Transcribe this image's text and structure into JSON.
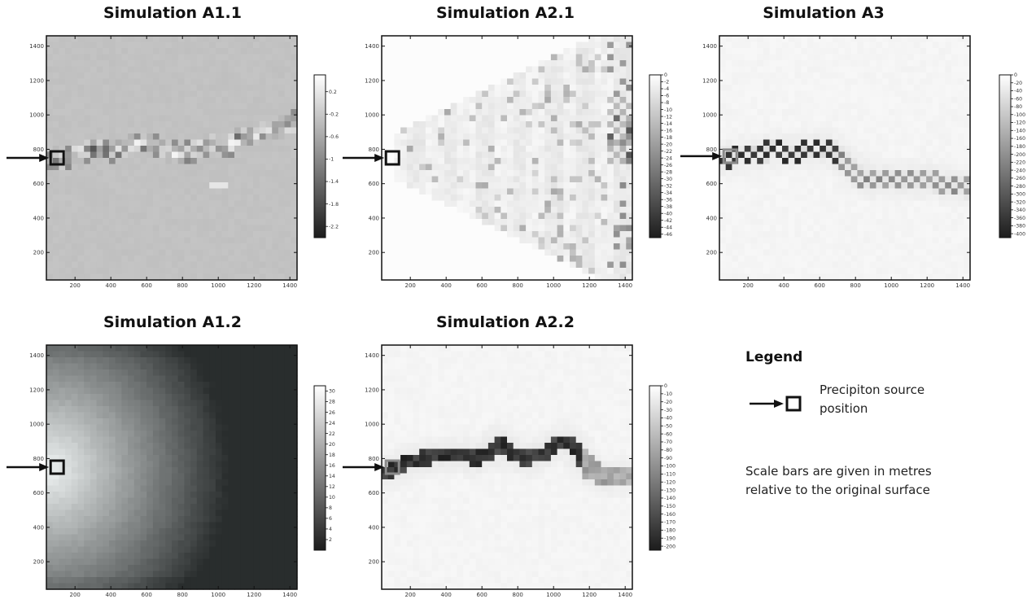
{
  "chart_data": [
    {
      "type": "heatmap",
      "title": "Simulation A1.1",
      "xticks": [
        200,
        400,
        600,
        800,
        1000,
        1200,
        1400
      ],
      "yticks": [
        200,
        400,
        600,
        800,
        1000,
        1200,
        1400
      ],
      "xlim": [
        40,
        1440
      ],
      "ylim": [
        40,
        1460
      ],
      "colorbar": {
        "ticks": [
          "0.2",
          "-0.2",
          "-0.6",
          "-1",
          "-1.4",
          "-1.8",
          "-2.2"
        ],
        "range": [
          0.5,
          -2.4
        ]
      },
      "source": {
        "x": 100,
        "y": 750
      },
      "pattern": "channel",
      "path": [
        [
          40,
          760
        ],
        [
          140,
          740
        ],
        [
          250,
          790
        ],
        [
          330,
          810
        ],
        [
          420,
          790
        ],
        [
          520,
          840
        ],
        [
          620,
          830
        ],
        [
          700,
          790
        ],
        [
          800,
          770
        ],
        [
          880,
          800
        ],
        [
          960,
          830
        ],
        [
          1050,
          820
        ],
        [
          1120,
          870
        ],
        [
          1200,
          890
        ],
        [
          1300,
          910
        ],
        [
          1440,
          960
        ]
      ],
      "base": 0.76
    },
    {
      "type": "heatmap",
      "title": "Simulation A2.1",
      "xticks": [
        200,
        400,
        600,
        800,
        1000,
        1200,
        1400
      ],
      "yticks": [
        200,
        400,
        600,
        800,
        1000,
        1200,
        1400
      ],
      "xlim": [
        40,
        1440
      ],
      "ylim": [
        40,
        1460
      ],
      "colorbar": {
        "ticks": [
          "0",
          "-2",
          "-4",
          "-6",
          "-8",
          "-10",
          "-12",
          "-14",
          "-16",
          "-18",
          "-20",
          "-22",
          "-24",
          "-26",
          "-28",
          "-30",
          "-32",
          "-34",
          "-36",
          "-38",
          "-40",
          "-42",
          "-44",
          "-46"
        ],
        "range": [
          0,
          -47
        ]
      },
      "source": {
        "x": 100,
        "y": 750
      },
      "pattern": "fan",
      "base": 0.98
    },
    {
      "type": "heatmap",
      "title": "Simulation A3",
      "xticks": [
        200,
        400,
        600,
        800,
        1000,
        1200,
        1400
      ],
      "yticks": [
        200,
        400,
        600,
        800,
        1000,
        1200,
        1400
      ],
      "xlim": [
        40,
        1440
      ],
      "ylim": [
        40,
        1460
      ],
      "colorbar": {
        "ticks": [
          "0",
          "-20",
          "-40",
          "-60",
          "-80",
          "-100",
          "-120",
          "-140",
          "-160",
          "-180",
          "-200",
          "-220",
          "-240",
          "-260",
          "-280",
          "-300",
          "-320",
          "-340",
          "-360",
          "-380",
          "-400"
        ],
        "range": [
          0,
          -410
        ]
      },
      "source": {
        "x": 100,
        "y": 760
      },
      "pattern": "channel-checker",
      "path": [
        [
          40,
          740
        ],
        [
          150,
          760
        ],
        [
          260,
          780
        ],
        [
          360,
          790
        ],
        [
          460,
          780
        ],
        [
          560,
          800
        ],
        [
          640,
          810
        ],
        [
          720,
          740
        ],
        [
          800,
          670
        ],
        [
          880,
          620
        ],
        [
          980,
          640
        ],
        [
          1080,
          620
        ],
        [
          1180,
          620
        ],
        [
          1300,
          600
        ],
        [
          1440,
          570
        ]
      ],
      "base": 0.97
    },
    {
      "type": "heatmap",
      "title": "Simulation A1.2",
      "xticks": [
        200,
        400,
        600,
        800,
        1000,
        1200,
        1400
      ],
      "yticks": [
        200,
        400,
        600,
        800,
        1000,
        1200,
        1400
      ],
      "xlim": [
        40,
        1440
      ],
      "ylim": [
        40,
        1460
      ],
      "colorbar": {
        "ticks": [
          "30",
          "28",
          "26",
          "24",
          "22",
          "20",
          "18",
          "16",
          "14",
          "12",
          "10",
          "8",
          "6",
          "4",
          "2"
        ],
        "range": [
          31,
          0
        ]
      },
      "source": {
        "x": 100,
        "y": 750
      },
      "pattern": "radial",
      "base": 0.2
    },
    {
      "type": "heatmap",
      "title": "Simulation A2.2",
      "xticks": [
        200,
        400,
        600,
        800,
        1000,
        1200,
        1400
      ],
      "yticks": [
        200,
        400,
        600,
        800,
        1000,
        1200,
        1400
      ],
      "xlim": [
        40,
        1440
      ],
      "ylim": [
        40,
        1460
      ],
      "colorbar": {
        "ticks": [
          "0",
          "-10",
          "-20",
          "-30",
          "-40",
          "-50",
          "-60",
          "-70",
          "-80",
          "-90",
          "-100",
          "-110",
          "-120",
          "-130",
          "-140",
          "-150",
          "-160",
          "-170",
          "-180",
          "-190",
          "-200"
        ],
        "range": [
          0,
          -205
        ]
      },
      "source": {
        "x": 100,
        "y": 750
      },
      "pattern": "channel-dark",
      "path": [
        [
          40,
          720
        ],
        [
          120,
          740
        ],
        [
          220,
          790
        ],
        [
          320,
          810
        ],
        [
          420,
          820
        ],
        [
          500,
          830
        ],
        [
          560,
          790
        ],
        [
          640,
          840
        ],
        [
          700,
          900
        ],
        [
          780,
          820
        ],
        [
          860,
          800
        ],
        [
          960,
          840
        ],
        [
          1060,
          900
        ],
        [
          1120,
          860
        ],
        [
          1200,
          740
        ],
        [
          1280,
          690
        ],
        [
          1360,
          700
        ],
        [
          1440,
          690
        ]
      ],
      "base": 0.97
    }
  ],
  "legend": {
    "title": "Legend",
    "entry_line1": "Precipiton source",
    "entry_line2": "position",
    "note_line1": "Scale bars are given in metres",
    "note_line2": "relative to the original surface"
  }
}
